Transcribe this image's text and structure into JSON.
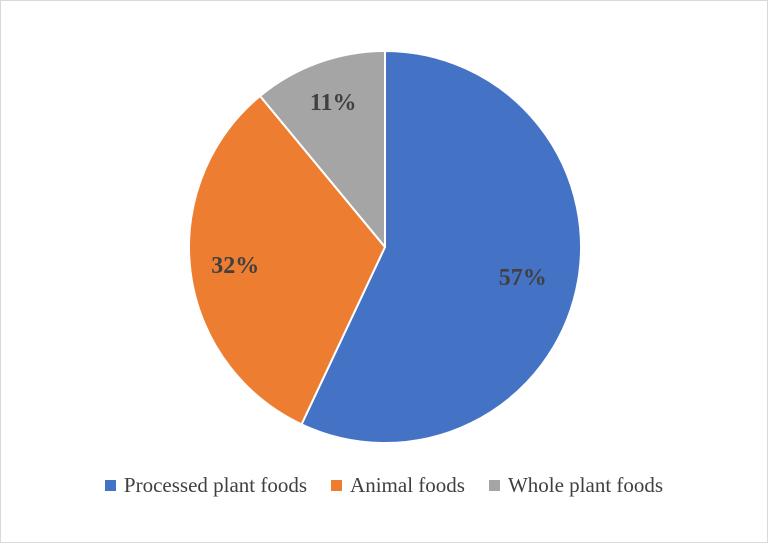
{
  "chart_data": {
    "type": "pie",
    "title": "",
    "categories": [
      "Processed plant foods",
      "Animal foods",
      "Whole plant foods"
    ],
    "values": [
      57,
      32,
      11
    ],
    "value_labels": [
      "57%",
      "32%",
      "11%"
    ],
    "colors": [
      "#4472C4",
      "#ED7D31",
      "#A5A5A5"
    ],
    "start_angle_deg": 0,
    "direction": "clockwise",
    "legend_position": "bottom"
  }
}
